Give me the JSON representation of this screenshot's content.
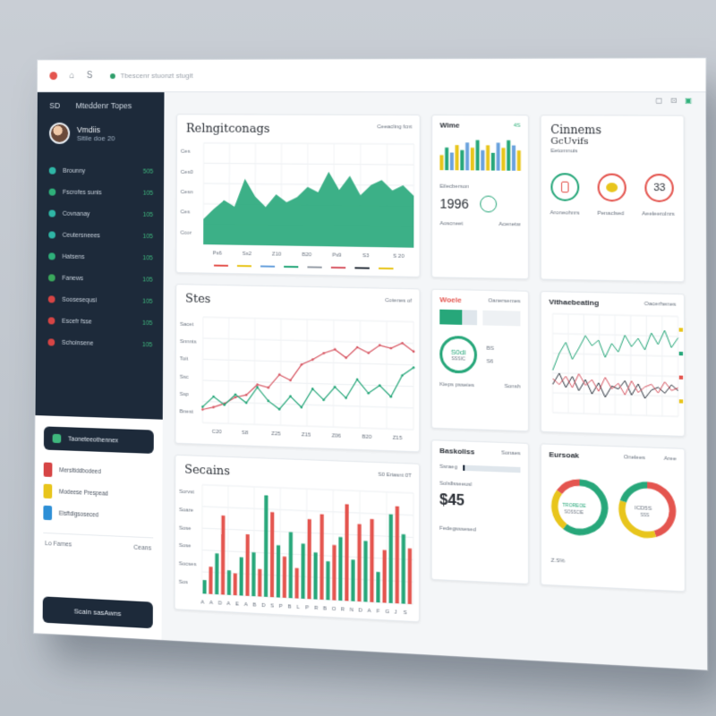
{
  "window": {
    "tab_text": "Tbescenr stuonzt stugit",
    "controls": [
      "A",
      "⌂",
      "S"
    ]
  },
  "sidebar": {
    "header": {
      "left": "SD",
      "title": "Mteddenr Topes"
    },
    "user": {
      "name": "Vmdiis",
      "sub": "Sitile doe 20"
    },
    "items": [
      {
        "label": "Brounny",
        "value": "505",
        "color": "#2fb6a6"
      },
      {
        "label": "Fscrofes sunis",
        "value": "105",
        "color": "#2fb07a"
      },
      {
        "label": "Covnanay",
        "value": "105",
        "color": "#2fb6a6"
      },
      {
        "label": "Ceutersneees",
        "value": "105",
        "color": "#2fb6a6"
      },
      {
        "label": "Hatsens",
        "value": "105",
        "color": "#2fb07a"
      },
      {
        "label": "Fanews",
        "value": "105",
        "color": "#3aa85c"
      },
      {
        "label": "Soosesequsi",
        "value": "105",
        "color": "#d64545"
      },
      {
        "label": "Escefr fsse",
        "value": "105",
        "color": "#d64545"
      },
      {
        "label": "Schoinsene",
        "value": "105",
        "color": "#d64545"
      }
    ],
    "card_label": "Taoneteeothennex",
    "rows": [
      {
        "label": "Mersltiddbodeed",
        "color": "#d64545"
      },
      {
        "label": "Modeese Prespead",
        "color": "#e8c51c"
      },
      {
        "label": "Elsftdigsoseced",
        "color": "#2d8fd6"
      }
    ],
    "split": {
      "left": "Lo Fames",
      "right": "Ceans"
    },
    "bottom_label": "Scain sasAwns"
  },
  "cards": {
    "revenue": {
      "title": "Relngitconags",
      "meta": "Ceeacling fcnt",
      "yticks": [
        "Ces",
        "Ces0",
        "Cesn",
        "Ces",
        "Ccor"
      ],
      "xticks": [
        "Ps6",
        "Ss2",
        "Z10",
        "B20",
        "Ps9",
        "S3",
        "S 20"
      ]
    },
    "wime": {
      "title": "Wime",
      "meta": "4S",
      "sub": "Eilecberson",
      "kpi": "1996",
      "foot_left": "Aoscneet",
      "foot_right": "Acenetw"
    },
    "cinnems": {
      "title": "Cinnems",
      "subtitle": "GcUvifs",
      "caption": "Eetomnuis",
      "badge": "33",
      "foot_left": "Aroneohnrs",
      "foot_mid": "Penaclsed",
      "foot_right": "Aeeleerolnrs"
    },
    "sites": {
      "title": "Stes",
      "meta": "Cotenes of",
      "yticks": [
        "Sacet",
        "Snnnts",
        "Toit",
        "Ssc",
        "Ssp",
        "Bnest"
      ],
      "xticks": [
        "C20",
        "S8",
        "Z25",
        "Z15",
        "Z06",
        "B20",
        "Z15"
      ]
    },
    "woele": {
      "title": "Woele",
      "meta": "Oanersemes",
      "ring_text": "S0di",
      "ring_sub": "SSSIC",
      "side_top": "BS",
      "side_bot": "S6",
      "foot_left": "Kieps psseies",
      "foot_right": "Sonsh"
    },
    "vitaebeating": {
      "title": "Vithaebeating",
      "meta": "Oacerhenes"
    },
    "secains": {
      "title": "Secains",
      "meta": "S0 Eriasnt 0T",
      "yticks": [
        "Sorvst",
        "Soare",
        "Sose",
        "Sose",
        "Socses",
        "Sos"
      ],
      "xticks": [
        "A",
        "A",
        "D",
        "A",
        "E",
        "A",
        "B",
        "D",
        "S",
        "P",
        "B",
        "L",
        "P",
        "R",
        "B",
        "O",
        "R",
        "N",
        "D",
        "A",
        "F",
        "G",
        "J",
        "S"
      ]
    },
    "basks": {
      "title": "Baskoliss",
      "meta": "Sonaes",
      "row1": "Ssraeg",
      "row2": "Solsllsseeusl",
      "price": "$45",
      "foot": "Fedegsssesed"
    },
    "eursoak": {
      "title": "Eursoak",
      "meta_left": "Onelees",
      "meta_right": "Aree",
      "ring1_text": "TROREOE",
      "ring1_sub": "SOSSCIE",
      "ring2_text": "ICD5S",
      "ring2_sub": "SSS",
      "foot": "Z.S%"
    }
  },
  "chart_data": [
    {
      "type": "area",
      "title": "Relngitconags",
      "x": [
        0,
        1,
        2,
        3,
        4,
        5,
        6,
        7,
        8,
        9,
        10,
        11,
        12,
        13,
        14,
        15,
        16,
        17,
        18,
        19,
        20
      ],
      "values": [
        20,
        28,
        35,
        30,
        52,
        38,
        30,
        40,
        34,
        38,
        46,
        42,
        58,
        44,
        55,
        40,
        48,
        52,
        44,
        48,
        40
      ],
      "ylim": [
        0,
        80
      ],
      "grid": true,
      "color": "#27a77a"
    },
    {
      "type": "line",
      "title": "Stes",
      "series": [
        {
          "values": [
            10,
            12,
            15,
            20,
            22,
            30,
            28,
            38,
            34,
            46,
            50,
            55,
            58,
            52,
            60,
            56,
            62,
            60,
            64,
            58
          ],
          "color": "#d85a66"
        },
        {
          "values": [
            12,
            20,
            14,
            22,
            16,
            28,
            18,
            12,
            22,
            14,
            28,
            20,
            30,
            22,
            36,
            26,
            32,
            24,
            40,
            46
          ],
          "color": "#27a77a"
        }
      ],
      "ylim": [
        0,
        80
      ],
      "grid": true
    },
    {
      "type": "bar",
      "title": "Secains",
      "values": [
        10,
        20,
        30,
        58,
        18,
        16,
        28,
        45,
        32,
        20,
        74,
        62,
        38,
        30,
        48,
        22,
        40,
        58,
        34,
        62,
        28,
        40,
        46,
        70,
        30,
        56,
        44,
        60,
        22,
        38,
        64,
        70,
        50,
        40
      ],
      "colors_cycle": [
        "#27a77a",
        "#e4554f"
      ],
      "ylim": [
        0,
        80
      ],
      "grid": true
    },
    {
      "type": "line",
      "title": "Vithaebeating",
      "series": [
        {
          "values": [
            30,
            42,
            50,
            38,
            46,
            55,
            48,
            52,
            40,
            50,
            44,
            56,
            48,
            54,
            46,
            58,
            50,
            60,
            48,
            55
          ],
          "color": "#27a77a"
        },
        {
          "values": [
            20,
            28,
            18,
            26,
            16,
            24,
            14,
            22,
            12,
            20,
            18,
            24,
            14,
            22,
            12,
            18,
            20,
            16,
            22,
            18
          ],
          "color": "#333a44"
        },
        {
          "values": [
            24,
            20,
            26,
            18,
            28,
            20,
            24,
            16,
            26,
            18,
            22,
            14,
            24,
            16,
            20,
            22,
            16,
            24,
            18,
            20
          ],
          "color": "#d85a66"
        }
      ],
      "ylim": [
        0,
        70
      ],
      "grid": true
    },
    {
      "type": "pie",
      "title": "Eursoak",
      "rings": [
        {
          "segments": [
            60,
            25,
            15
          ],
          "colors": [
            "#27a77a",
            "#e8c51c",
            "#e4554f"
          ]
        },
        {
          "segments": [
            45,
            35,
            20
          ],
          "colors": [
            "#e4554f",
            "#e8c51c",
            "#27a77a"
          ]
        }
      ]
    },
    {
      "type": "bar",
      "title": "Wime",
      "values": [
        6,
        9,
        7,
        10,
        8,
        11,
        9,
        12,
        8,
        10,
        7,
        11,
        9,
        12,
        10,
        8
      ],
      "colors_cycle": [
        "#e8c51c",
        "#27a77a",
        "#6aa2dd"
      ],
      "ylim": [
        0,
        14
      ]
    }
  ]
}
